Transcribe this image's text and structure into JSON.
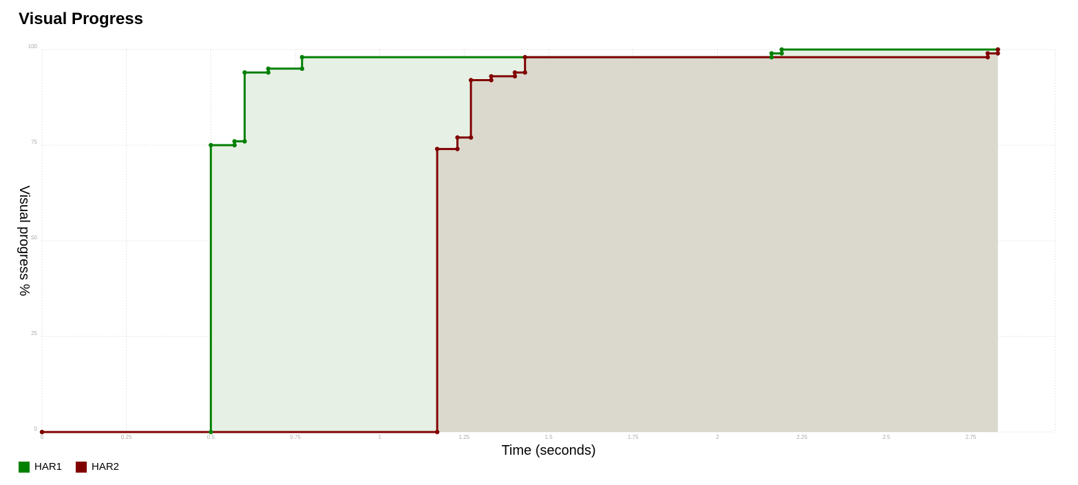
{
  "page": {
    "title": "Visual Progress"
  },
  "chart_data": {
    "type": "line",
    "title": "Visual Progress",
    "xlabel": "Time (seconds)",
    "ylabel": "Visual progress %",
    "xlim": [
      0,
      3.0
    ],
    "ylim": [
      0,
      100
    ],
    "xticks": [
      0,
      0.25,
      0.5,
      0.75,
      1,
      1.25,
      1.5,
      1.75,
      2,
      2.25,
      2.5,
      2.75
    ],
    "xtick_labels": [
      "0",
      "0.25",
      "0.5",
      "0.75",
      "1",
      "1.25",
      "1.5",
      "1.75",
      "2",
      "2.25",
      "2.5",
      "2.75"
    ],
    "yticks": [
      0,
      25,
      50,
      75,
      100
    ],
    "ytick_labels": [
      "0",
      "25",
      "50",
      "75",
      "100"
    ],
    "grid": true,
    "step": true,
    "legend_position": "bottom-left",
    "series": [
      {
        "name": "HAR1",
        "color": "#008000",
        "fill": "#e6f0e4",
        "points": [
          [
            0,
            0
          ],
          [
            0.5,
            0
          ],
          [
            0.5,
            75
          ],
          [
            0.57,
            75
          ],
          [
            0.57,
            76
          ],
          [
            0.6,
            76
          ],
          [
            0.6,
            94
          ],
          [
            0.67,
            94
          ],
          [
            0.67,
            95
          ],
          [
            0.77,
            95
          ],
          [
            0.77,
            98
          ],
          [
            2.16,
            98
          ],
          [
            2.16,
            99
          ],
          [
            2.19,
            99
          ],
          [
            2.19,
            100
          ],
          [
            2.83,
            100
          ]
        ]
      },
      {
        "name": "HAR2",
        "color": "#800000",
        "fill": "#dbd9cd",
        "points": [
          [
            0,
            0
          ],
          [
            1.17,
            0
          ],
          [
            1.17,
            74
          ],
          [
            1.23,
            74
          ],
          [
            1.23,
            77
          ],
          [
            1.27,
            77
          ],
          [
            1.27,
            92
          ],
          [
            1.33,
            92
          ],
          [
            1.33,
            93
          ],
          [
            1.4,
            93
          ],
          [
            1.4,
            94
          ],
          [
            1.43,
            94
          ],
          [
            1.43,
            98
          ],
          [
            2.8,
            98
          ],
          [
            2.8,
            99
          ],
          [
            2.83,
            99
          ],
          [
            2.83,
            100
          ]
        ]
      }
    ]
  },
  "legend": {
    "items": [
      {
        "label": "HAR1",
        "color": "#008000"
      },
      {
        "label": "HAR2",
        "color": "#800000"
      }
    ]
  }
}
